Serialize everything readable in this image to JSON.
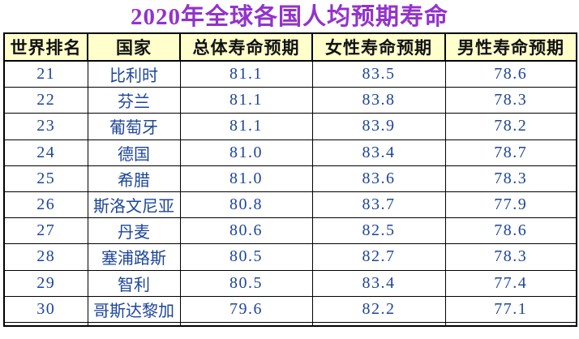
{
  "page": {
    "title": "2020年全球各国人均预期寿命"
  },
  "colors": {
    "title_text": "#9333CB",
    "header_background": "#FFFFCC",
    "header_text": "#000000",
    "cell_text": "#1D4599",
    "grid_lines": "#000000",
    "page_background": "#FFFFFF"
  },
  "chart_data": {
    "type": "table",
    "title": "2020年全球各国人均预期寿命",
    "columns": [
      "世界排名",
      "国家",
      "总体寿命预期",
      "女性寿命预期",
      "男性寿命预期"
    ],
    "rows": [
      [
        "21",
        "比利时",
        "81.1",
        "83.5",
        "78.6"
      ],
      [
        "22",
        "芬兰",
        "81.1",
        "83.8",
        "78.3"
      ],
      [
        "23",
        "葡萄牙",
        "81.1",
        "83.9",
        "78.2"
      ],
      [
        "24",
        "德国",
        "81.0",
        "83.4",
        "78.7"
      ],
      [
        "25",
        "希腊",
        "81.0",
        "83.6",
        "78.3"
      ],
      [
        "26",
        "斯洛文尼亚",
        "80.8",
        "83.7",
        "77.9"
      ],
      [
        "27",
        "丹麦",
        "80.6",
        "82.5",
        "78.6"
      ],
      [
        "28",
        "塞浦路斯",
        "80.5",
        "82.7",
        "78.3"
      ],
      [
        "29",
        "智利",
        "80.5",
        "83.4",
        "77.4"
      ],
      [
        "30",
        "哥斯达黎加",
        "79.6",
        "82.2",
        "77.1"
      ]
    ],
    "layout": {
      "header_position": "top",
      "grid": true,
      "rank_range_visible": "21-30",
      "clipped_next_row_at_bottom": true
    }
  }
}
